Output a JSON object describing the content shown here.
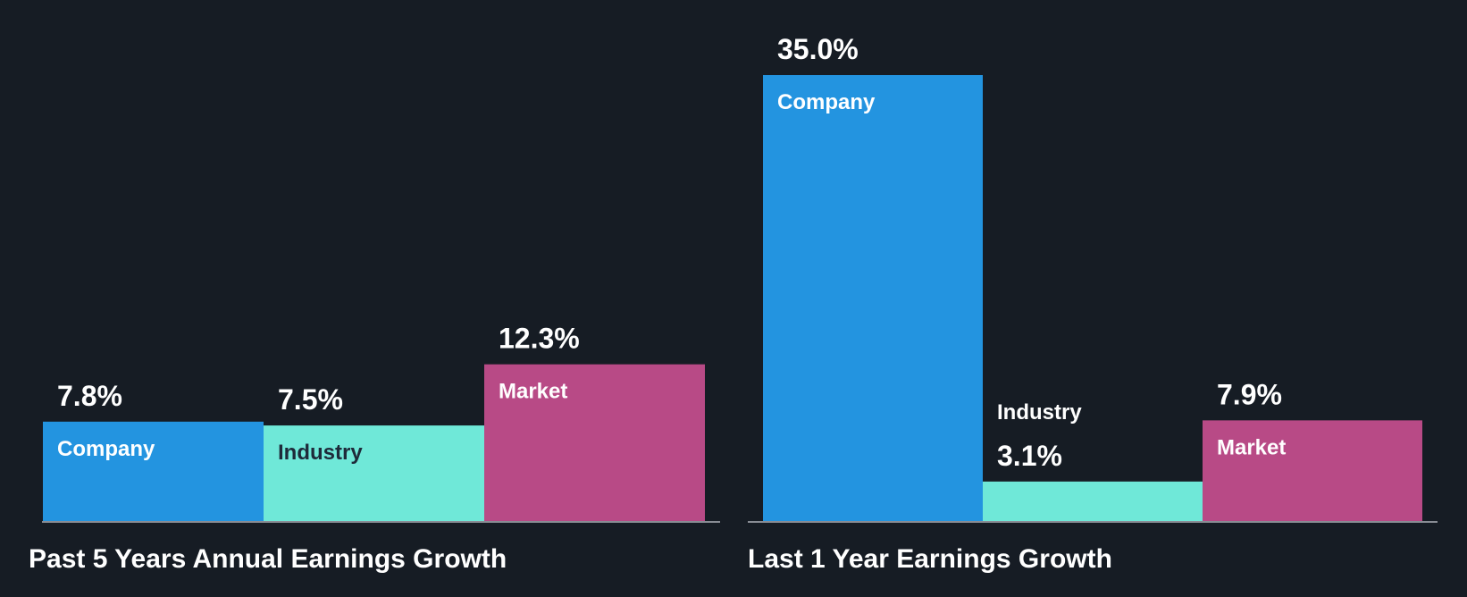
{
  "background": "#161c24",
  "colors": {
    "company": "#2394e0",
    "industry": "#6fe8d8",
    "market": "#b84a86",
    "axis": "#888c94",
    "label_light": "#ffffff",
    "label_dark": "#1e2a3a"
  },
  "chart_data": [
    {
      "type": "bar",
      "title": "Past 5 Years Annual Earnings Growth",
      "categories": [
        "Company",
        "Industry",
        "Market"
      ],
      "values": [
        7.8,
        7.5,
        12.3
      ],
      "value_labels": [
        "7.8%",
        "7.5%",
        "12.3%"
      ],
      "ylim": [
        0,
        35
      ]
    },
    {
      "type": "bar",
      "title": "Last 1 Year Earnings Growth",
      "categories": [
        "Company",
        "Industry",
        "Market"
      ],
      "values": [
        35.0,
        3.1,
        7.9
      ],
      "value_labels": [
        "35.0%",
        "3.1%",
        "7.9%"
      ],
      "ylim": [
        0,
        35
      ]
    }
  ]
}
